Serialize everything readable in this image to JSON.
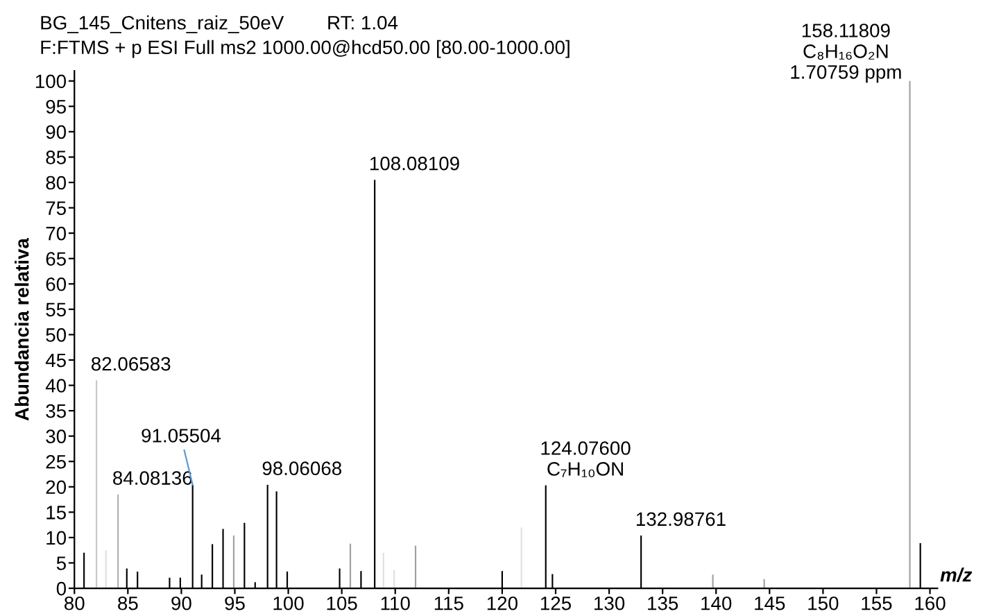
{
  "chart_data": {
    "type": "bar",
    "title": "BG_145_Cnitens_raiz_50eV        RT: 1.04",
    "subtitle": "F:FTMS + p ESI Full ms2 1000.00@hcd50.00 [80.00-1000.00]",
    "xlabel": "m/z",
    "ylabel": "Abundancia relativa",
    "x": [
      80.9,
      82.06583,
      82.95,
      84.08136,
      84.9,
      85.9,
      88.9,
      89.9,
      91.05504,
      91.9,
      92.9,
      93.9,
      94.9,
      95.9,
      96.9,
      98.06068,
      98.9,
      99.9,
      104.8,
      105.8,
      106.8,
      108.08109,
      108.9,
      109.9,
      111.9,
      120.0,
      121.8,
      124.076,
      124.7,
      132.98761,
      139.7,
      144.5,
      158.11809,
      159.1
    ],
    "values": [
      7.0,
      41,
      7.5,
      18.5,
      3.9,
      3.3,
      2.1,
      2.1,
      20.4,
      2.7,
      8.7,
      11.7,
      10.4,
      12.9,
      1.2,
      20.4,
      19.1,
      3.3,
      3.9,
      8.8,
      3.4,
      80.5,
      7.0,
      3.6,
      8.4,
      3.4,
      12.0,
      20.3,
      2.8,
      10.4,
      2.7,
      1.8,
      100,
      8.9
    ],
    "colors": [
      "#000000",
      "#c8c8c8",
      "#e0e0e0",
      "#b0b0b0",
      "#000000",
      "#000000",
      "#000000",
      "#000000",
      "#000000",
      "#000000",
      "#000000",
      "#000000",
      "#a0a0a0",
      "#000000",
      "#000000",
      "#000000",
      "#000000",
      "#000000",
      "#000000",
      "#a0a0a0",
      "#000000",
      "#000000",
      "#e0e0e0",
      "#e0e0e0",
      "#a0a0a0",
      "#000000",
      "#e0e0e0",
      "#000000",
      "#000000",
      "#000000",
      "#a0a0a0",
      "#a0a0a0",
      "#a0a0a0",
      "#000000"
    ],
    "annotations": [
      {
        "text": "82.06583",
        "x": 82.06583,
        "y": 41
      },
      {
        "text": "84.08136",
        "x": 84.08136,
        "y": 18.5
      },
      {
        "text": "91.05504",
        "x": 91.05504,
        "y": 20.4
      },
      {
        "text": "98.06068",
        "x": 98.06068,
        "y": 20.4
      },
      {
        "text": "108.08109",
        "x": 108.08109,
        "y": 80.5
      },
      {
        "text": "124.07600\nC₇H₁₀ON",
        "x": 124.076,
        "y": 20.3
      },
      {
        "text": "132.98761",
        "x": 132.98761,
        "y": 10.4
      },
      {
        "text": "158.11809\nC₈H₁₆O₂N\n1.70759 ppm",
        "x": 158.11809,
        "y": 100
      }
    ],
    "xlim": [
      80,
      160.7
    ],
    "ylim": [
      0,
      102
    ],
    "xticks": [
      80,
      85,
      90,
      95,
      100,
      105,
      110,
      115,
      120,
      125,
      130,
      135,
      140,
      145,
      150,
      155,
      160
    ],
    "yticks": [
      0,
      5,
      10,
      15,
      20,
      25,
      30,
      35,
      40,
      45,
      50,
      55,
      60,
      65,
      70,
      75,
      80,
      85,
      90,
      95,
      100
    ]
  }
}
